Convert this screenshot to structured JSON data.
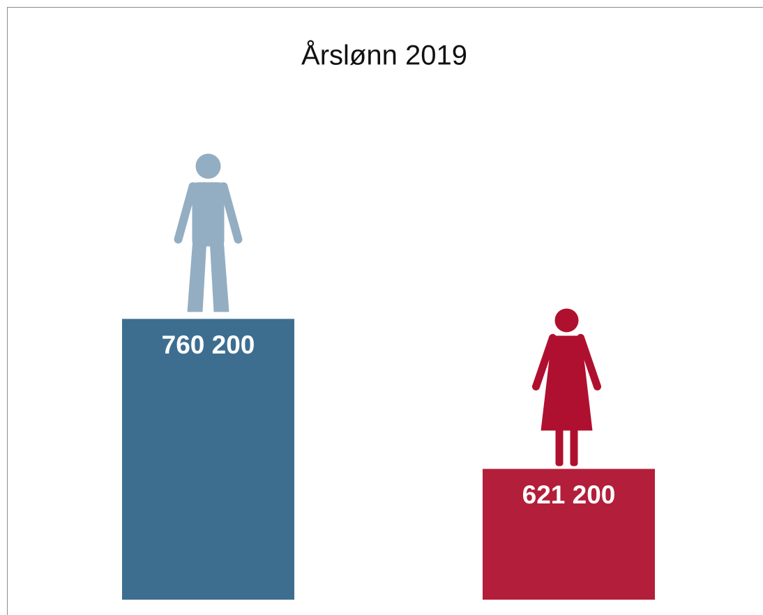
{
  "chart_data": {
    "type": "bar",
    "title": "Årslønn 2019",
    "categories": [
      null,
      null
    ],
    "values": [
      760200,
      621200
    ],
    "value_labels": [
      "760 200",
      "621 200"
    ],
    "colors": [
      "#3d6e8f",
      "#b31e3a"
    ],
    "ylim": [
      500000,
      900000
    ]
  }
}
